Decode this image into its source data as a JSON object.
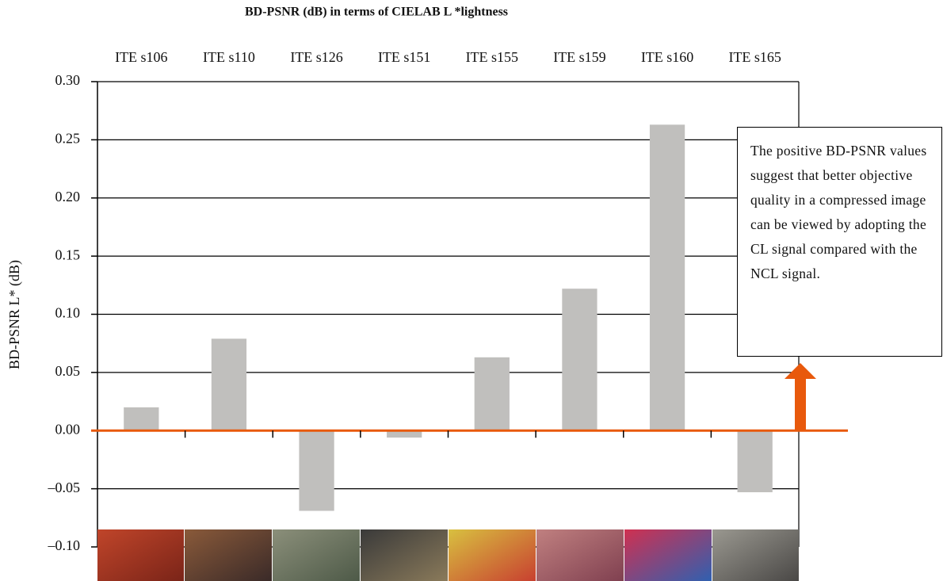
{
  "chart_data": {
    "type": "bar",
    "title": "BD-PSNR (dB) in terms of CIELAB L *lightness",
    "y_label": "BD-PSNR L* (dB)",
    "categories": [
      "ITE s106",
      "ITE s110",
      "ITE s126",
      "ITE s151",
      "ITE s155",
      "ITE s159",
      "ITE s160",
      "ITE s165"
    ],
    "values": [
      0.02,
      0.079,
      -0.069,
      -0.006,
      0.063,
      0.122,
      0.263,
      -0.053
    ],
    "color": "#c0bfbd",
    "ylim": [
      -0.1,
      0.3
    ],
    "yticks": [
      {
        "value": -0.1,
        "label": "–0.10"
      },
      {
        "value": -0.05,
        "label": "–0.05"
      },
      {
        "value": 0,
        "label": "0.00"
      },
      {
        "value": 0.05,
        "label": "0.05"
      },
      {
        "value": 0.1,
        "label": "0.10"
      },
      {
        "value": 0.15,
        "label": "0.15"
      },
      {
        "value": 0.2,
        "label": "0.20"
      },
      {
        "value": 0.25,
        "label": "0.25"
      },
      {
        "value": 0.3,
        "label": "0.30"
      }
    ],
    "grid": true,
    "annotation": "The positive BD-PSNR values suggest that better objective quality in a compressed image can be viewed by adopting the CL signal compared with the NCL signal."
  }
}
